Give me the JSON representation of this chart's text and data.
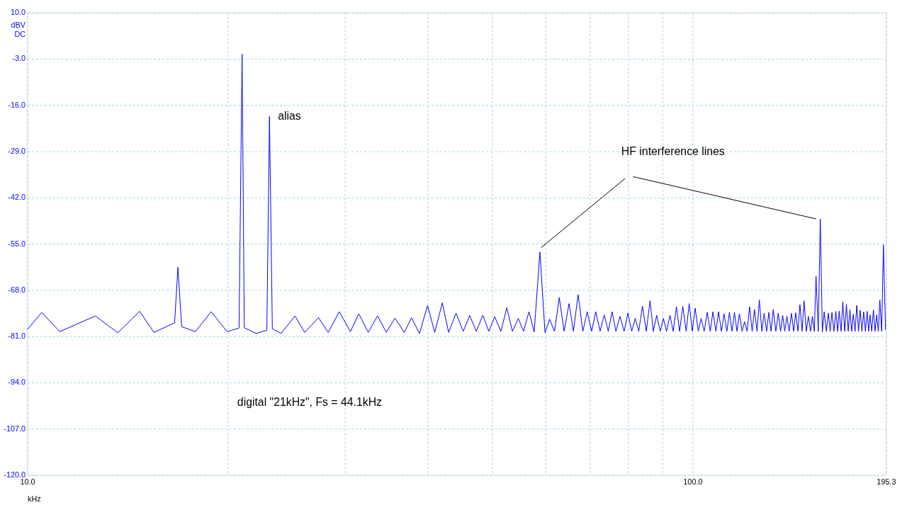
{
  "chart_data": {
    "type": "line",
    "xlabel": "kHz",
    "ylabel": "dBV\nDC",
    "log": "x",
    "grid": true,
    "xlim": [
      10,
      195.3
    ],
    "ylim": [
      -120,
      10
    ],
    "xticks": [
      {
        "value": 10,
        "label": "10.0"
      },
      {
        "value": 20,
        "label": null
      },
      {
        "value": 30,
        "label": null
      },
      {
        "value": 40,
        "label": null
      },
      {
        "value": 50,
        "label": null
      },
      {
        "value": 60,
        "label": null
      },
      {
        "value": 70,
        "label": null
      },
      {
        "value": 80,
        "label": null
      },
      {
        "value": 90,
        "label": null
      },
      {
        "value": 100,
        "label": "100.0"
      },
      {
        "value": 195.3,
        "label": "195.3"
      }
    ],
    "yticks": [
      {
        "value": 10,
        "label": "10.0"
      },
      {
        "value": -3,
        "label": "-3.0"
      },
      {
        "value": -16,
        "label": "-16.0"
      },
      {
        "value": -29,
        "label": "-29.0"
      },
      {
        "value": -42,
        "label": "-42.0"
      },
      {
        "value": -55,
        "label": "-55.0"
      },
      {
        "value": -68,
        "label": "-68.0"
      },
      {
        "value": -81,
        "label": "-81.0"
      },
      {
        "value": -94,
        "label": "-94.0"
      },
      {
        "value": -107,
        "label": "-107.0"
      },
      {
        "value": -120,
        "label": "-120.0"
      }
    ],
    "x": [
      10.0,
      10.51,
      11.19,
      12.65,
      13.68,
      14.75,
      15.5,
      16.65,
      16.84,
      17.06,
      17.89,
      18.89,
      19.97,
      20.81,
      21.03,
      21.19,
      22.08,
      22.91,
      23.12,
      23.35,
      24.07,
      25.26,
      26.11,
      27.4,
      28.33,
      29.44,
      30.59,
      31.5,
      32.55,
      33.6,
      34.65,
      35.69,
      36.87,
      37.8,
      38.86,
      39.96,
      40.97,
      42.05,
      42.98,
      44.1,
      45.2,
      46.24,
      47.3,
      48.39,
      49.4,
      50.41,
      51.5,
      52.57,
      53.6,
      54.71,
      55.7,
      56.76,
      57.8,
      58.95,
      60.0,
      60.97,
      62.0,
      63.04,
      64.1,
      65.21,
      66.2,
      67.29,
      68.4,
      69.44,
      70.5,
      71.53,
      72.6,
      73.65,
      74.7,
      75.68,
      76.7,
      77.78,
      78.9,
      79.94,
      81.0,
      81.98,
      83.0,
      84.07,
      85.2,
      86.31,
      87.3,
      88.32,
      89.4,
      90.39,
      91.4,
      92.49,
      93.5,
      94.56,
      95.6,
      96.67,
      97.8,
      98.84,
      99.9,
      100.9,
      102.0,
      103.0,
      104.1,
      105.2,
      106.3,
      107.3,
      108.4,
      109.4,
      110.5,
      111.5,
      112.6,
      113.6,
      114.6,
      115.6,
      116.6,
      117.6,
      118.7,
      119.7,
      120.8,
      121.8,
      122.9,
      123.9,
      125.0,
      126.0,
      127.1,
      128.1,
      129.2,
      130.2,
      131.2,
      132.2,
      133.4,
      134.5,
      135.6,
      136.6,
      137.6,
      138.6,
      139.7,
      140.8,
      141.9,
      142.9,
      144.0,
      145.0,
      146.1,
      147.1,
      148.2,
      149.3,
      150.4,
      151.4,
      152.4,
      153.3,
      154.5,
      155.6,
      156.7,
      157.7,
      158.9,
      160.0,
      161.0,
      162.0,
      163.1,
      164.2,
      165.2,
      166.1,
      167.2,
      168.2,
      169.3,
      170.3,
      171.4,
      172.4,
      173.4,
      174.4,
      175.5,
      176.5,
      177.6,
      178.6,
      179.7,
      180.8,
      181.9,
      183.0,
      183.9,
      184.8,
      185.9,
      187.0,
      188.1,
      189.1,
      190.2,
      191.2,
      192.4,
      193.6,
      195.0
    ],
    "series": [
      {
        "color": "#0000ff",
        "values": [
          -79.1,
          -74.3,
          -79.7,
          -75.3,
          -80.0,
          -74.0,
          -79.9,
          -77.2,
          -61.6,
          -78.3,
          -79.7,
          -74.1,
          -79.7,
          -78.7,
          -1.7,
          -78.6,
          -80.2,
          -79.3,
          -19.2,
          -78.9,
          -80.2,
          -75.3,
          -79.9,
          -75.8,
          -79.9,
          -74.1,
          -79.7,
          -74.7,
          -79.9,
          -75.3,
          -79.9,
          -75.9,
          -79.9,
          -75.8,
          -80.2,
          -72.4,
          -79.9,
          -71.6,
          -79.9,
          -74.5,
          -79.6,
          -75.2,
          -79.6,
          -75.1,
          -79.6,
          -75.5,
          -79.6,
          -73.0,
          -79.6,
          -76.0,
          -79.6,
          -74.1,
          -79.8,
          -57.3,
          -80.0,
          -76.2,
          -79.6,
          -70.1,
          -79.6,
          -71.8,
          -79.6,
          -69.3,
          -79.6,
          -74.1,
          -79.6,
          -74.1,
          -79.6,
          -75.0,
          -79.6,
          -74.1,
          -79.6,
          -75.4,
          -79.6,
          -74.5,
          -79.6,
          -76.0,
          -79.6,
          -72.5,
          -79.6,
          -71.0,
          -79.6,
          -75.1,
          -79.6,
          -76.0,
          -79.6,
          -75.1,
          -79.6,
          -72.7,
          -79.6,
          -72.6,
          -79.6,
          -71.8,
          -79.6,
          -73.1,
          -79.6,
          -76.0,
          -79.6,
          -74.3,
          -79.6,
          -74.1,
          -79.6,
          -74.1,
          -79.6,
          -74.7,
          -79.6,
          -74.3,
          -79.6,
          -74.3,
          -79.6,
          -74.7,
          -79.6,
          -76.9,
          -79.6,
          -72.7,
          -79.6,
          -73.5,
          -79.6,
          -70.8,
          -79.6,
          -74.5,
          -79.6,
          -74.3,
          -79.6,
          -73.5,
          -79.6,
          -74.5,
          -79.6,
          -75.1,
          -79.6,
          -75.4,
          -79.6,
          -74.5,
          -79.6,
          -74.4,
          -79.6,
          -72.1,
          -79.6,
          -71.0,
          -79.6,
          -75.4,
          -79.6,
          -75.4,
          -79.6,
          -64.1,
          -79.6,
          -48.0,
          -79.8,
          -74.1,
          -79.6,
          -74.5,
          -79.6,
          -74.3,
          -79.6,
          -74.0,
          -79.6,
          -73.9,
          -79.6,
          -71.3,
          -79.6,
          -72.0,
          -79.6,
          -73.5,
          -79.6,
          -74.8,
          -79.6,
          -72.3,
          -79.6,
          -73.7,
          -79.6,
          -74.1,
          -79.6,
          -74.0,
          -79.6,
          -75.0,
          -79.6,
          -73.6,
          -79.6,
          -75.0,
          -79.6,
          -70.8,
          -79.6,
          -55.3,
          -79.2
        ]
      }
    ],
    "annotations": [
      {
        "text": "alias",
        "x": 23.12,
        "y": -19.2
      },
      "HF interference lines",
      "digital \"21kHz\", Fs = 44.1kHz"
    ]
  }
}
